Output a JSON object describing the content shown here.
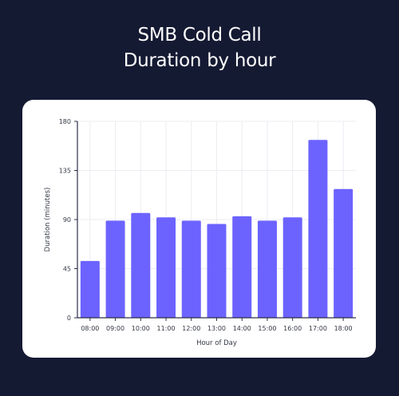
{
  "header": {
    "title_line1": "SMB Cold Call",
    "title_line2": "Duration by hour"
  },
  "colors": {
    "background": "#151a33",
    "card": "#ffffff",
    "bar": "#6c63ff",
    "axis": "#2b2f4a",
    "grid": "#ececf2"
  },
  "chart_data": {
    "type": "bar",
    "categories": [
      "08:00",
      "09:00",
      "10:00",
      "11:00",
      "12:00",
      "13:00",
      "14:00",
      "15:00",
      "16:00",
      "17:00",
      "18:00"
    ],
    "values": [
      52,
      89,
      96,
      92,
      89,
      86,
      93,
      89,
      92,
      163,
      118
    ],
    "xlabel": "Hour of Day",
    "ylabel": "Duration (minutes)",
    "ylim": [
      0,
      180
    ],
    "yticks": [
      0,
      45,
      90,
      135,
      180
    ],
    "grid": true,
    "legend": "none"
  }
}
